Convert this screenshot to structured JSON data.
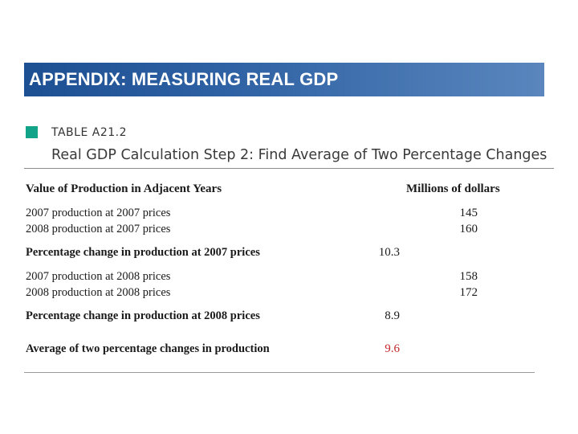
{
  "banner": {
    "title": "APPENDIX: MEASURING REAL GDP"
  },
  "table": {
    "label": "TABLE A21.2",
    "subtitle": "Real GDP Calculation Step 2: Find Average of Two Percentage Changes",
    "column_left_header": "Value of Production in Adjacent Years",
    "column_right_header": "Millions of dollars",
    "rows": [
      {
        "label": "2007 production at 2007 prices",
        "value": "145"
      },
      {
        "label": "2008 production at 2007 prices",
        "value": "160"
      },
      {
        "label": "Percentage change in production at 2007 prices",
        "value": "10.3"
      },
      {
        "label": "2007 production at 2008 prices",
        "value": "158"
      },
      {
        "label": "2008 production at 2008 prices",
        "value": "172"
      },
      {
        "label": "Percentage change in production at 2008 prices",
        "value": "8.9"
      },
      {
        "label": "Average of two percentage changes in production",
        "value": "9.6"
      }
    ],
    "colors": {
      "accent_marker": "#12a489",
      "banner": "#1d4f93",
      "highlight": "#c4272b"
    }
  }
}
